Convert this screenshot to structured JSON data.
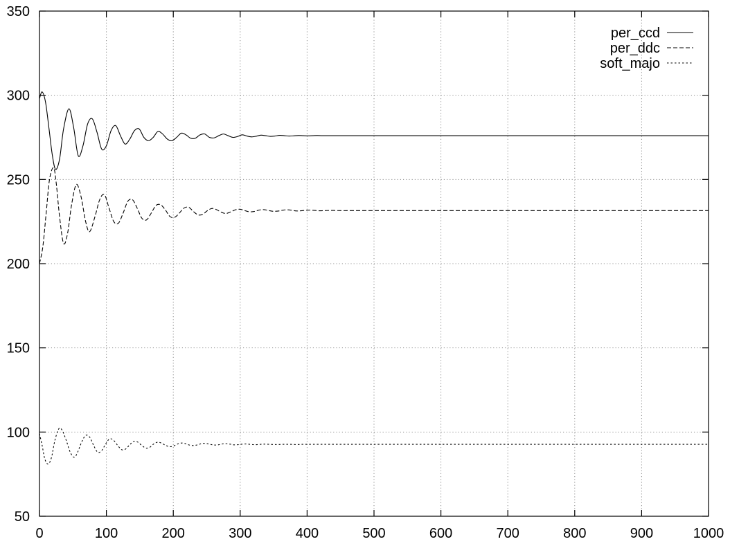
{
  "chart_data": {
    "type": "line",
    "title": "",
    "xlabel": "",
    "ylabel": "",
    "xlim": [
      0,
      1000
    ],
    "ylim": [
      50,
      350
    ],
    "xticks": [
      0,
      100,
      200,
      300,
      400,
      500,
      600,
      700,
      800,
      900,
      1000
    ],
    "yticks": [
      50,
      100,
      150,
      200,
      250,
      300,
      350
    ],
    "grid": true,
    "legend_position": "top-right",
    "series": [
      {
        "name": "per_ccd",
        "style": "solid",
        "color": "#000000",
        "x": [
          0,
          4,
          9,
          14,
          19,
          24,
          30,
          36,
          44,
          51,
          58,
          65,
          72,
          79,
          86,
          93,
          100,
          107,
          114,
          121,
          128,
          135,
          142,
          149,
          156,
          163,
          170,
          177,
          184,
          191,
          198,
          205,
          212,
          219,
          226,
          233,
          240,
          247,
          254,
          261,
          268,
          275,
          282,
          289,
          296,
          303,
          310,
          317,
          324,
          331,
          338,
          345,
          352,
          359,
          366,
          373,
          380,
          387,
          394,
          401,
          408,
          415,
          422,
          429,
          436,
          443,
          450,
          457,
          464,
          471,
          478,
          485,
          500,
          520,
          550,
          600,
          700,
          800,
          900,
          1000
        ],
        "y": [
          298,
          302,
          296,
          281,
          265,
          256,
          262,
          280,
          292,
          281,
          264,
          270,
          283,
          286,
          278,
          268,
          270,
          279,
          282,
          276,
          271,
          274,
          279,
          280,
          275,
          273,
          275,
          278.5,
          277,
          274,
          273,
          275,
          277.5,
          276.5,
          274.5,
          274.5,
          276.5,
          277,
          275,
          274.7,
          276,
          277,
          276,
          275,
          275.5,
          276.5,
          275.8,
          275.3,
          275.7,
          276.3,
          276,
          275.6,
          275.8,
          276.2,
          276,
          275.8,
          275.9,
          276.1,
          276,
          275.9,
          276,
          276.1,
          276,
          276,
          276,
          276,
          276,
          276,
          276,
          276,
          276,
          276,
          276,
          276,
          276,
          276,
          276,
          276,
          276,
          276
        ]
      },
      {
        "name": "per_ddc",
        "style": "dashed",
        "color": "#000000",
        "x": [
          0,
          5,
          10,
          15,
          21,
          25,
          30,
          36,
          42,
          48,
          55,
          62,
          69,
          75,
          83,
          90,
          97,
          104,
          111,
          118,
          125,
          132,
          139,
          146,
          153,
          160,
          167,
          174,
          181,
          188,
          195,
          202,
          209,
          216,
          223,
          230,
          237,
          244,
          251,
          258,
          265,
          272,
          279,
          286,
          293,
          300,
          307,
          314,
          321,
          328,
          335,
          342,
          349,
          356,
          363,
          370,
          377,
          384,
          391,
          398,
          405,
          412,
          419,
          426,
          433,
          440,
          450,
          470,
          500,
          600,
          700,
          800,
          900,
          1000
        ],
        "y": [
          200,
          210,
          230,
          250,
          257,
          248,
          228,
          212,
          218,
          235,
          247,
          240,
          225,
          219,
          228,
          238,
          241,
          233,
          225,
          224,
          230,
          237,
          238,
          233,
          227,
          226,
          230,
          234.5,
          235,
          232,
          228,
          227.5,
          230,
          233,
          233.5,
          231,
          229,
          229.3,
          231.5,
          232.8,
          232,
          230.5,
          229.8,
          230.8,
          232,
          232.3,
          231.5,
          230.8,
          231,
          231.8,
          232.1,
          231.6,
          231.1,
          231.2,
          231.7,
          232,
          231.7,
          231.3,
          231.4,
          231.7,
          231.8,
          231.6,
          231.4,
          231.5,
          231.6,
          231.6,
          231.5,
          231.5,
          231.5,
          231.5,
          231.5,
          231.5,
          231.5,
          231.5
        ]
      },
      {
        "name": "soft_majo",
        "style": "dotted",
        "color": "#000000",
        "x": [
          0,
          4,
          8,
          13,
          18,
          23,
          29,
          34,
          40,
          46,
          52,
          57,
          63,
          69,
          75,
          81,
          87,
          93,
          99,
          105,
          111,
          117,
          123,
          129,
          135,
          141,
          147,
          153,
          159,
          165,
          171,
          177,
          183,
          189,
          195,
          201,
          207,
          213,
          219,
          225,
          231,
          237,
          243,
          249,
          255,
          261,
          267,
          273,
          279,
          285,
          291,
          297,
          303,
          309,
          315,
          321,
          327,
          333,
          339,
          345,
          351,
          357,
          363,
          369,
          375,
          381,
          387,
          393,
          400,
          450,
          500,
          600,
          700,
          800,
          900,
          1000
        ],
        "y": [
          99,
          92,
          84,
          81,
          85,
          95,
          102,
          101,
          95,
          88,
          85,
          88,
          94,
          98,
          97,
          92,
          88,
          89,
          93,
          96,
          95,
          92,
          89.5,
          90,
          92.5,
          94.5,
          94,
          92,
          90.5,
          91,
          93,
          94,
          93.3,
          92,
          91.3,
          91.8,
          93,
          93.5,
          93,
          92.2,
          92,
          92.5,
          93.2,
          93.2,
          92.7,
          92.3,
          92.4,
          92.9,
          93.1,
          92.8,
          92.4,
          92.5,
          92.8,
          92.9,
          92.7,
          92.5,
          92.6,
          92.8,
          92.8,
          92.7,
          92.6,
          92.6,
          92.7,
          92.7,
          92.7,
          92.6,
          92.6,
          92.7,
          92.7,
          92.7,
          92.7,
          92.7,
          92.7,
          92.7,
          92.7,
          92.7
        ]
      }
    ]
  }
}
